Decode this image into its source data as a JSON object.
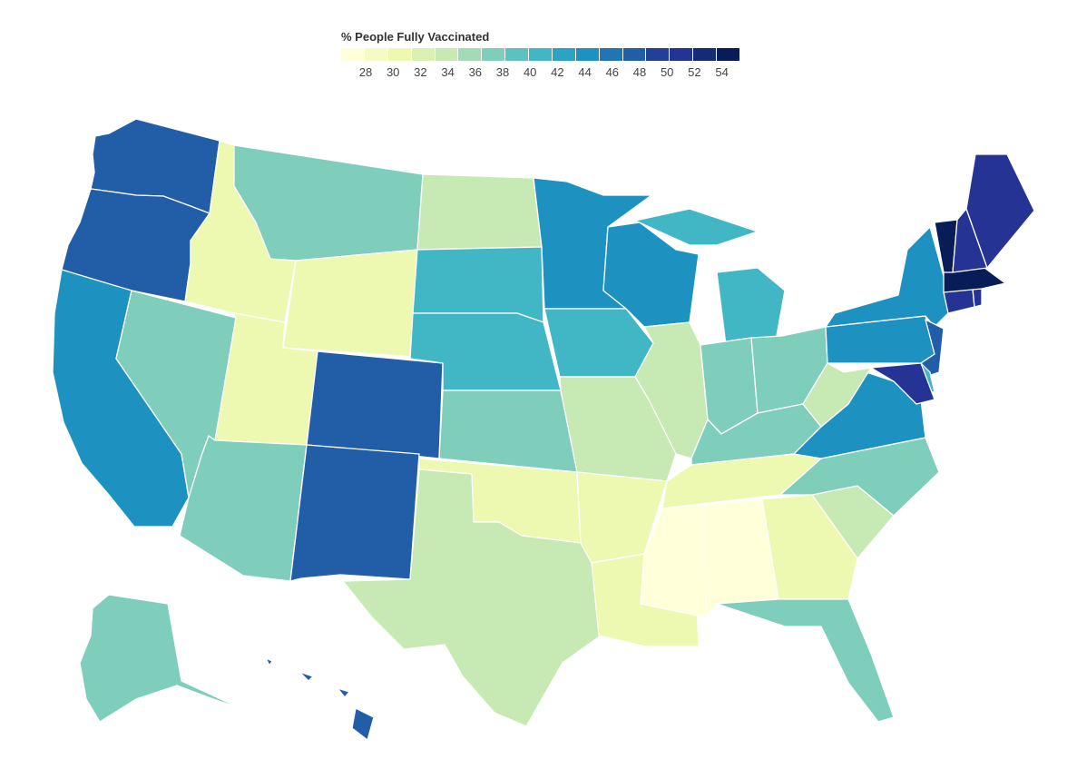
{
  "legend": {
    "title": "% People Fully Vaccinated",
    "ticks": [
      "28",
      "30",
      "32",
      "34",
      "36",
      "38",
      "40",
      "42",
      "44",
      "46",
      "48",
      "50",
      "52",
      "54"
    ],
    "swatch_colors": [
      "#ffffd9",
      "#f6fbc3",
      "#eef8b1",
      "#dbf1b4",
      "#c7e9b4",
      "#a3dbb7",
      "#7fcdbb",
      "#5fc0c0",
      "#41b6c4",
      "#2ea2c3",
      "#1d91c0",
      "#2275b4",
      "#225ea8",
      "#243f99",
      "#253494",
      "#162b78",
      "#081d58"
    ]
  },
  "regions": [
    {
      "name": "Washington",
      "value": 49,
      "color": "#225ea8"
    },
    {
      "name": "Oregon",
      "value": 49,
      "color": "#225ea8"
    },
    {
      "name": "California",
      "value": 46,
      "color": "#1d91c0"
    },
    {
      "name": "Nevada",
      "value": 38,
      "color": "#7fcdbb"
    },
    {
      "name": "Idaho",
      "value": 30,
      "color": "#edf8b1"
    },
    {
      "name": "Montana",
      "value": 38,
      "color": "#7fcdbb"
    },
    {
      "name": "Wyoming",
      "value": 30,
      "color": "#edf8b1"
    },
    {
      "name": "Utah",
      "value": 30,
      "color": "#edf8b1"
    },
    {
      "name": "Arizona",
      "value": 38,
      "color": "#7fcdbb"
    },
    {
      "name": "Colorado",
      "value": 49,
      "color": "#225ea8"
    },
    {
      "name": "New Mexico",
      "value": 49,
      "color": "#225ea8"
    },
    {
      "name": "North Dakota",
      "value": 34,
      "color": "#c7e9b4"
    },
    {
      "name": "South Dakota",
      "value": 42,
      "color": "#41b6c4"
    },
    {
      "name": "Nebraska",
      "value": 42,
      "color": "#41b6c4"
    },
    {
      "name": "Kansas",
      "value": 38,
      "color": "#7fcdbb"
    },
    {
      "name": "Oklahoma",
      "value": 30,
      "color": "#edf8b1"
    },
    {
      "name": "Texas",
      "value": 34,
      "color": "#c7e9b4"
    },
    {
      "name": "Minnesota",
      "value": 46,
      "color": "#1d91c0"
    },
    {
      "name": "Iowa",
      "value": 42,
      "color": "#41b6c4"
    },
    {
      "name": "Missouri",
      "value": 34,
      "color": "#c7e9b4"
    },
    {
      "name": "Arkansas",
      "value": 30,
      "color": "#edf8b1"
    },
    {
      "name": "Louisiana",
      "value": 30,
      "color": "#edf8b1"
    },
    {
      "name": "Wisconsin",
      "value": 46,
      "color": "#1d91c0"
    },
    {
      "name": "Illinois",
      "value": 34,
      "color": "#c7e9b4"
    },
    {
      "name": "Michigan",
      "value": 42,
      "color": "#41b6c4"
    },
    {
      "name": "Indiana",
      "value": 38,
      "color": "#7fcdbb"
    },
    {
      "name": "Ohio",
      "value": 38,
      "color": "#7fcdbb"
    },
    {
      "name": "Kentucky",
      "value": 38,
      "color": "#7fcdbb"
    },
    {
      "name": "Tennessee",
      "value": 30,
      "color": "#edf8b1"
    },
    {
      "name": "Mississippi",
      "value": 28,
      "color": "#ffffd9"
    },
    {
      "name": "Alabama",
      "value": 28,
      "color": "#ffffd9"
    },
    {
      "name": "Georgia",
      "value": 30,
      "color": "#edf8b1"
    },
    {
      "name": "Florida",
      "value": 38,
      "color": "#7fcdbb"
    },
    {
      "name": "South Carolina",
      "value": 34,
      "color": "#c7e9b4"
    },
    {
      "name": "North Carolina",
      "value": 38,
      "color": "#7fcdbb"
    },
    {
      "name": "Virginia",
      "value": 46,
      "color": "#1d91c0"
    },
    {
      "name": "West Virginia",
      "value": 34,
      "color": "#c7e9b4"
    },
    {
      "name": "Pennsylvania",
      "value": 46,
      "color": "#1d91c0"
    },
    {
      "name": "New York",
      "value": 46,
      "color": "#1d91c0"
    },
    {
      "name": "New Jersey",
      "value": 49,
      "color": "#225ea8"
    },
    {
      "name": "Delaware",
      "value": 42,
      "color": "#41b6c4"
    },
    {
      "name": "Maryland",
      "value": 51,
      "color": "#253494"
    },
    {
      "name": "Connecticut",
      "value": 52,
      "color": "#253494"
    },
    {
      "name": "Rhode Island",
      "value": 52,
      "color": "#253494"
    },
    {
      "name": "Massachusetts",
      "value": 54,
      "color": "#081d58"
    },
    {
      "name": "Vermont",
      "value": 55,
      "color": "#081d58"
    },
    {
      "name": "New Hampshire",
      "value": 51,
      "color": "#253494"
    },
    {
      "name": "Maine",
      "value": 51,
      "color": "#253494"
    },
    {
      "name": "Alaska",
      "value": 38,
      "color": "#7fcdbb"
    },
    {
      "name": "Hawaii",
      "value": 49,
      "color": "#225ea8"
    }
  ]
}
